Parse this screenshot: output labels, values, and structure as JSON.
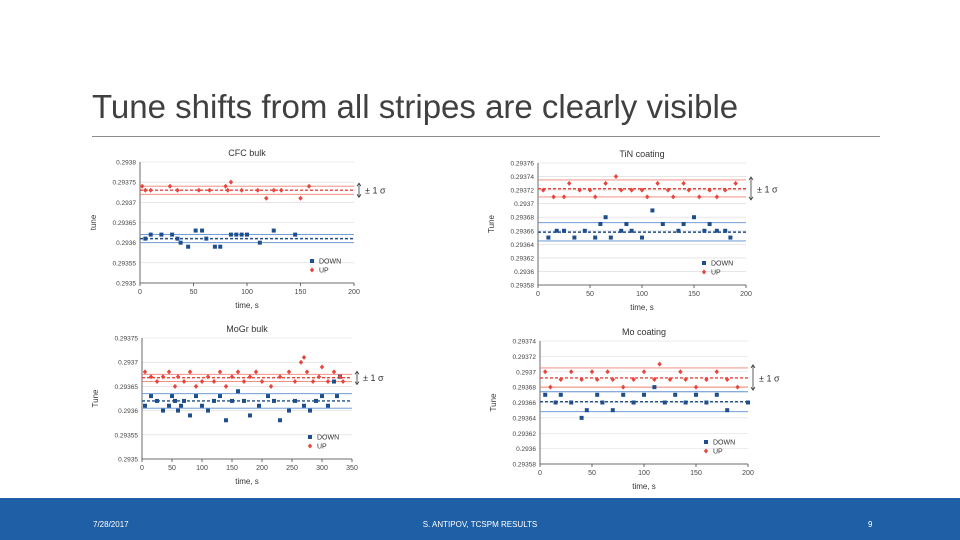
{
  "slide": {
    "title": "Tune shifts from all stripes are clearly visible",
    "footer_date": "7/28/2017",
    "footer_center": "S. ANTIPOV, TCSPM RESULTS",
    "page_number": "9"
  },
  "colors": {
    "down": "#1f4e8c",
    "up": "#e8453c",
    "down_band": "#5b8fd0",
    "up_band": "#f08070",
    "footer": "#1f5fa5"
  },
  "chart_data": [
    {
      "type": "scatter",
      "title": "CFC bulk",
      "xlabel": "time, s",
      "ylabel": "tune",
      "xlim": [
        0,
        200
      ],
      "ylim": [
        0.2935,
        0.2938
      ],
      "xticks": [
        "0",
        "50",
        "100",
        "150",
        "200"
      ],
      "yticks": [
        "0.2938",
        "0.29375",
        "0.2937",
        "0.29365",
        "0.2936",
        "0.29355",
        "0.2935"
      ],
      "legend_position": "bottom-right",
      "sigma_label": "± 1 σ",
      "series": [
        {
          "name": "DOWN",
          "color": "#1f4e8c",
          "marker": "square",
          "mean": 0.29361,
          "band": [
            0.2936,
            0.29362
          ],
          "x": [
            5,
            10,
            20,
            30,
            35,
            38,
            45,
            52,
            58,
            62,
            70,
            75,
            85,
            90,
            95,
            100,
            112,
            125,
            145
          ],
          "y": [
            0.29361,
            0.29362,
            0.29362,
            0.29362,
            0.29361,
            0.2936,
            0.29359,
            0.29363,
            0.29363,
            0.29361,
            0.29359,
            0.29359,
            0.29362,
            0.29362,
            0.29362,
            0.29362,
            0.2936,
            0.29363,
            0.29362
          ]
        },
        {
          "name": "UP",
          "color": "#e8453c",
          "marker": "diamond",
          "mean": 0.29373,
          "band": [
            0.29372,
            0.29374
          ],
          "x": [
            2,
            5,
            10,
            28,
            35,
            55,
            65,
            80,
            82,
            85,
            95,
            110,
            118,
            125,
            132,
            150,
            158
          ],
          "y": [
            0.29374,
            0.29373,
            0.29373,
            0.29374,
            0.29373,
            0.29373,
            0.29373,
            0.29374,
            0.29373,
            0.29375,
            0.29373,
            0.29373,
            0.29371,
            0.29373,
            0.29373,
            0.29371,
            0.29374
          ]
        }
      ]
    },
    {
      "type": "scatter",
      "title": "TiN coating",
      "xlabel": "time, s",
      "ylabel": "Tune",
      "xlim": [
        0,
        200
      ],
      "ylim": [
        0.29358,
        0.29376
      ],
      "xticks": [
        "0",
        "50",
        "100",
        "150",
        "200"
      ],
      "yticks": [
        "0.29376",
        "0.29374",
        "0.29372",
        "0.2937",
        "0.29368",
        "0.29366",
        "0.29364",
        "0.29362",
        "0.2936",
        "0.29358"
      ],
      "legend_position": "bottom-right",
      "sigma_label": "± 1 σ",
      "series": [
        {
          "name": "DOWN",
          "color": "#1f4e8c",
          "marker": "square",
          "mean": 0.293658,
          "band": [
            0.293645,
            0.293672
          ],
          "x": [
            10,
            18,
            25,
            35,
            45,
            55,
            60,
            65,
            70,
            80,
            85,
            90,
            100,
            110,
            120,
            135,
            140,
            150,
            160,
            165,
            172,
            180,
            185
          ],
          "y": [
            0.29365,
            0.29366,
            0.29366,
            0.29365,
            0.29366,
            0.29365,
            0.29367,
            0.29368,
            0.29365,
            0.29366,
            0.29367,
            0.29366,
            0.29365,
            0.29369,
            0.29367,
            0.29366,
            0.29367,
            0.29368,
            0.29366,
            0.29367,
            0.29366,
            0.29366,
            0.29365
          ]
        },
        {
          "name": "UP",
          "color": "#e8453c",
          "marker": "diamond",
          "mean": 0.293722,
          "band": [
            0.29371,
            0.293735
          ],
          "x": [
            5,
            15,
            25,
            30,
            40,
            50,
            55,
            65,
            75,
            80,
            90,
            100,
            105,
            115,
            125,
            130,
            140,
            145,
            155,
            165,
            172,
            180,
            190
          ],
          "y": [
            0.29372,
            0.29371,
            0.29371,
            0.29373,
            0.29372,
            0.29372,
            0.29371,
            0.29373,
            0.29374,
            0.29372,
            0.29372,
            0.29372,
            0.29371,
            0.29373,
            0.29372,
            0.29371,
            0.29373,
            0.29372,
            0.29371,
            0.29372,
            0.29371,
            0.29372,
            0.29373
          ]
        }
      ]
    },
    {
      "type": "scatter",
      "title": "MoGr bulk",
      "xlabel": "time, s",
      "ylabel": "Tune",
      "xlim": [
        0,
        350
      ],
      "ylim": [
        0.2935,
        0.29375
      ],
      "xticks": [
        "0",
        "50",
        "100",
        "150",
        "200",
        "250",
        "300",
        "350"
      ],
      "yticks": [
        "0.29375",
        "0.2937",
        "0.29365",
        "0.2936",
        "0.29355",
        "0.2935"
      ],
      "legend_position": "bottom-right",
      "sigma_label": "± 1 σ",
      "series": [
        {
          "name": "DOWN",
          "color": "#1f4e8c",
          "marker": "square",
          "mean": 0.29362,
          "band": [
            0.293605,
            0.293635
          ],
          "x": [
            5,
            15,
            25,
            35,
            45,
            50,
            55,
            60,
            65,
            70,
            80,
            90,
            100,
            110,
            120,
            130,
            140,
            150,
            160,
            170,
            180,
            195,
            210,
            220,
            230,
            245,
            255,
            270,
            280,
            290,
            300,
            310,
            320,
            325,
            330
          ],
          "y": [
            0.29361,
            0.29363,
            0.29362,
            0.2936,
            0.29361,
            0.29363,
            0.29362,
            0.2936,
            0.29361,
            0.29362,
            0.29359,
            0.29363,
            0.29361,
            0.2936,
            0.29362,
            0.29363,
            0.29358,
            0.29362,
            0.29364,
            0.29362,
            0.29359,
            0.29361,
            0.29363,
            0.29362,
            0.29358,
            0.2936,
            0.29362,
            0.29361,
            0.2936,
            0.29362,
            0.29363,
            0.29361,
            0.29366,
            0.29363,
            0.29367
          ]
        },
        {
          "name": "UP",
          "color": "#e8453c",
          "marker": "diamond",
          "mean": 0.293668,
          "band": [
            0.29366,
            0.293675
          ],
          "x": [
            5,
            15,
            25,
            35,
            45,
            55,
            60,
            70,
            80,
            90,
            100,
            110,
            120,
            130,
            140,
            150,
            160,
            170,
            180,
            190,
            200,
            215,
            230,
            245,
            255,
            265,
            270,
            275,
            285,
            295,
            300,
            310,
            320,
            330,
            335
          ],
          "y": [
            0.29368,
            0.29367,
            0.29366,
            0.29367,
            0.29368,
            0.29365,
            0.29367,
            0.29366,
            0.29368,
            0.29365,
            0.29366,
            0.29367,
            0.29366,
            0.29368,
            0.29365,
            0.29367,
            0.29368,
            0.29366,
            0.29367,
            0.29368,
            0.29366,
            0.29365,
            0.29367,
            0.29368,
            0.29366,
            0.2937,
            0.29371,
            0.29368,
            0.29366,
            0.29367,
            0.29369,
            0.29366,
            0.29368,
            0.29367,
            0.29366
          ]
        }
      ]
    },
    {
      "type": "scatter",
      "title": "Mo coating",
      "xlabel": "time, s",
      "ylabel": "Tune",
      "xlim": [
        0,
        200
      ],
      "ylim": [
        0.29358,
        0.29374
      ],
      "xticks": [
        "0",
        "50",
        "100",
        "150",
        "200"
      ],
      "yticks": [
        "0.29374",
        "0.29372",
        "0.2937",
        "0.29368",
        "0.29366",
        "0.29364",
        "0.29362",
        "0.2936",
        "0.29358"
      ],
      "legend_position": "bottom-right",
      "sigma_label": "± 1 σ",
      "series": [
        {
          "name": "DOWN",
          "color": "#1f4e8c",
          "marker": "square",
          "mean": 0.293661,
          "band": [
            0.293648,
            0.293674
          ],
          "x": [
            5,
            15,
            20,
            30,
            40,
            45,
            55,
            60,
            70,
            80,
            90,
            100,
            110,
            120,
            130,
            140,
            150,
            160,
            170,
            180,
            200
          ],
          "y": [
            0.29367,
            0.29366,
            0.29367,
            0.29366,
            0.29364,
            0.29365,
            0.29367,
            0.29366,
            0.29365,
            0.29367,
            0.29366,
            0.29367,
            0.29368,
            0.29366,
            0.29367,
            0.29366,
            0.29367,
            0.29366,
            0.29367,
            0.29365,
            0.29366
          ]
        },
        {
          "name": "UP",
          "color": "#e8453c",
          "marker": "diamond",
          "mean": 0.293692,
          "band": [
            0.29368,
            0.293705
          ],
          "x": [
            5,
            10,
            20,
            30,
            40,
            50,
            55,
            65,
            70,
            80,
            90,
            100,
            110,
            115,
            125,
            135,
            140,
            150,
            160,
            170,
            180,
            190
          ],
          "y": [
            0.2937,
            0.29368,
            0.29369,
            0.2937,
            0.29369,
            0.2937,
            0.29369,
            0.2937,
            0.29369,
            0.29368,
            0.29369,
            0.2937,
            0.29369,
            0.29371,
            0.29369,
            0.2937,
            0.29369,
            0.29368,
            0.29369,
            0.2937,
            0.29369,
            0.29368
          ]
        }
      ]
    }
  ]
}
